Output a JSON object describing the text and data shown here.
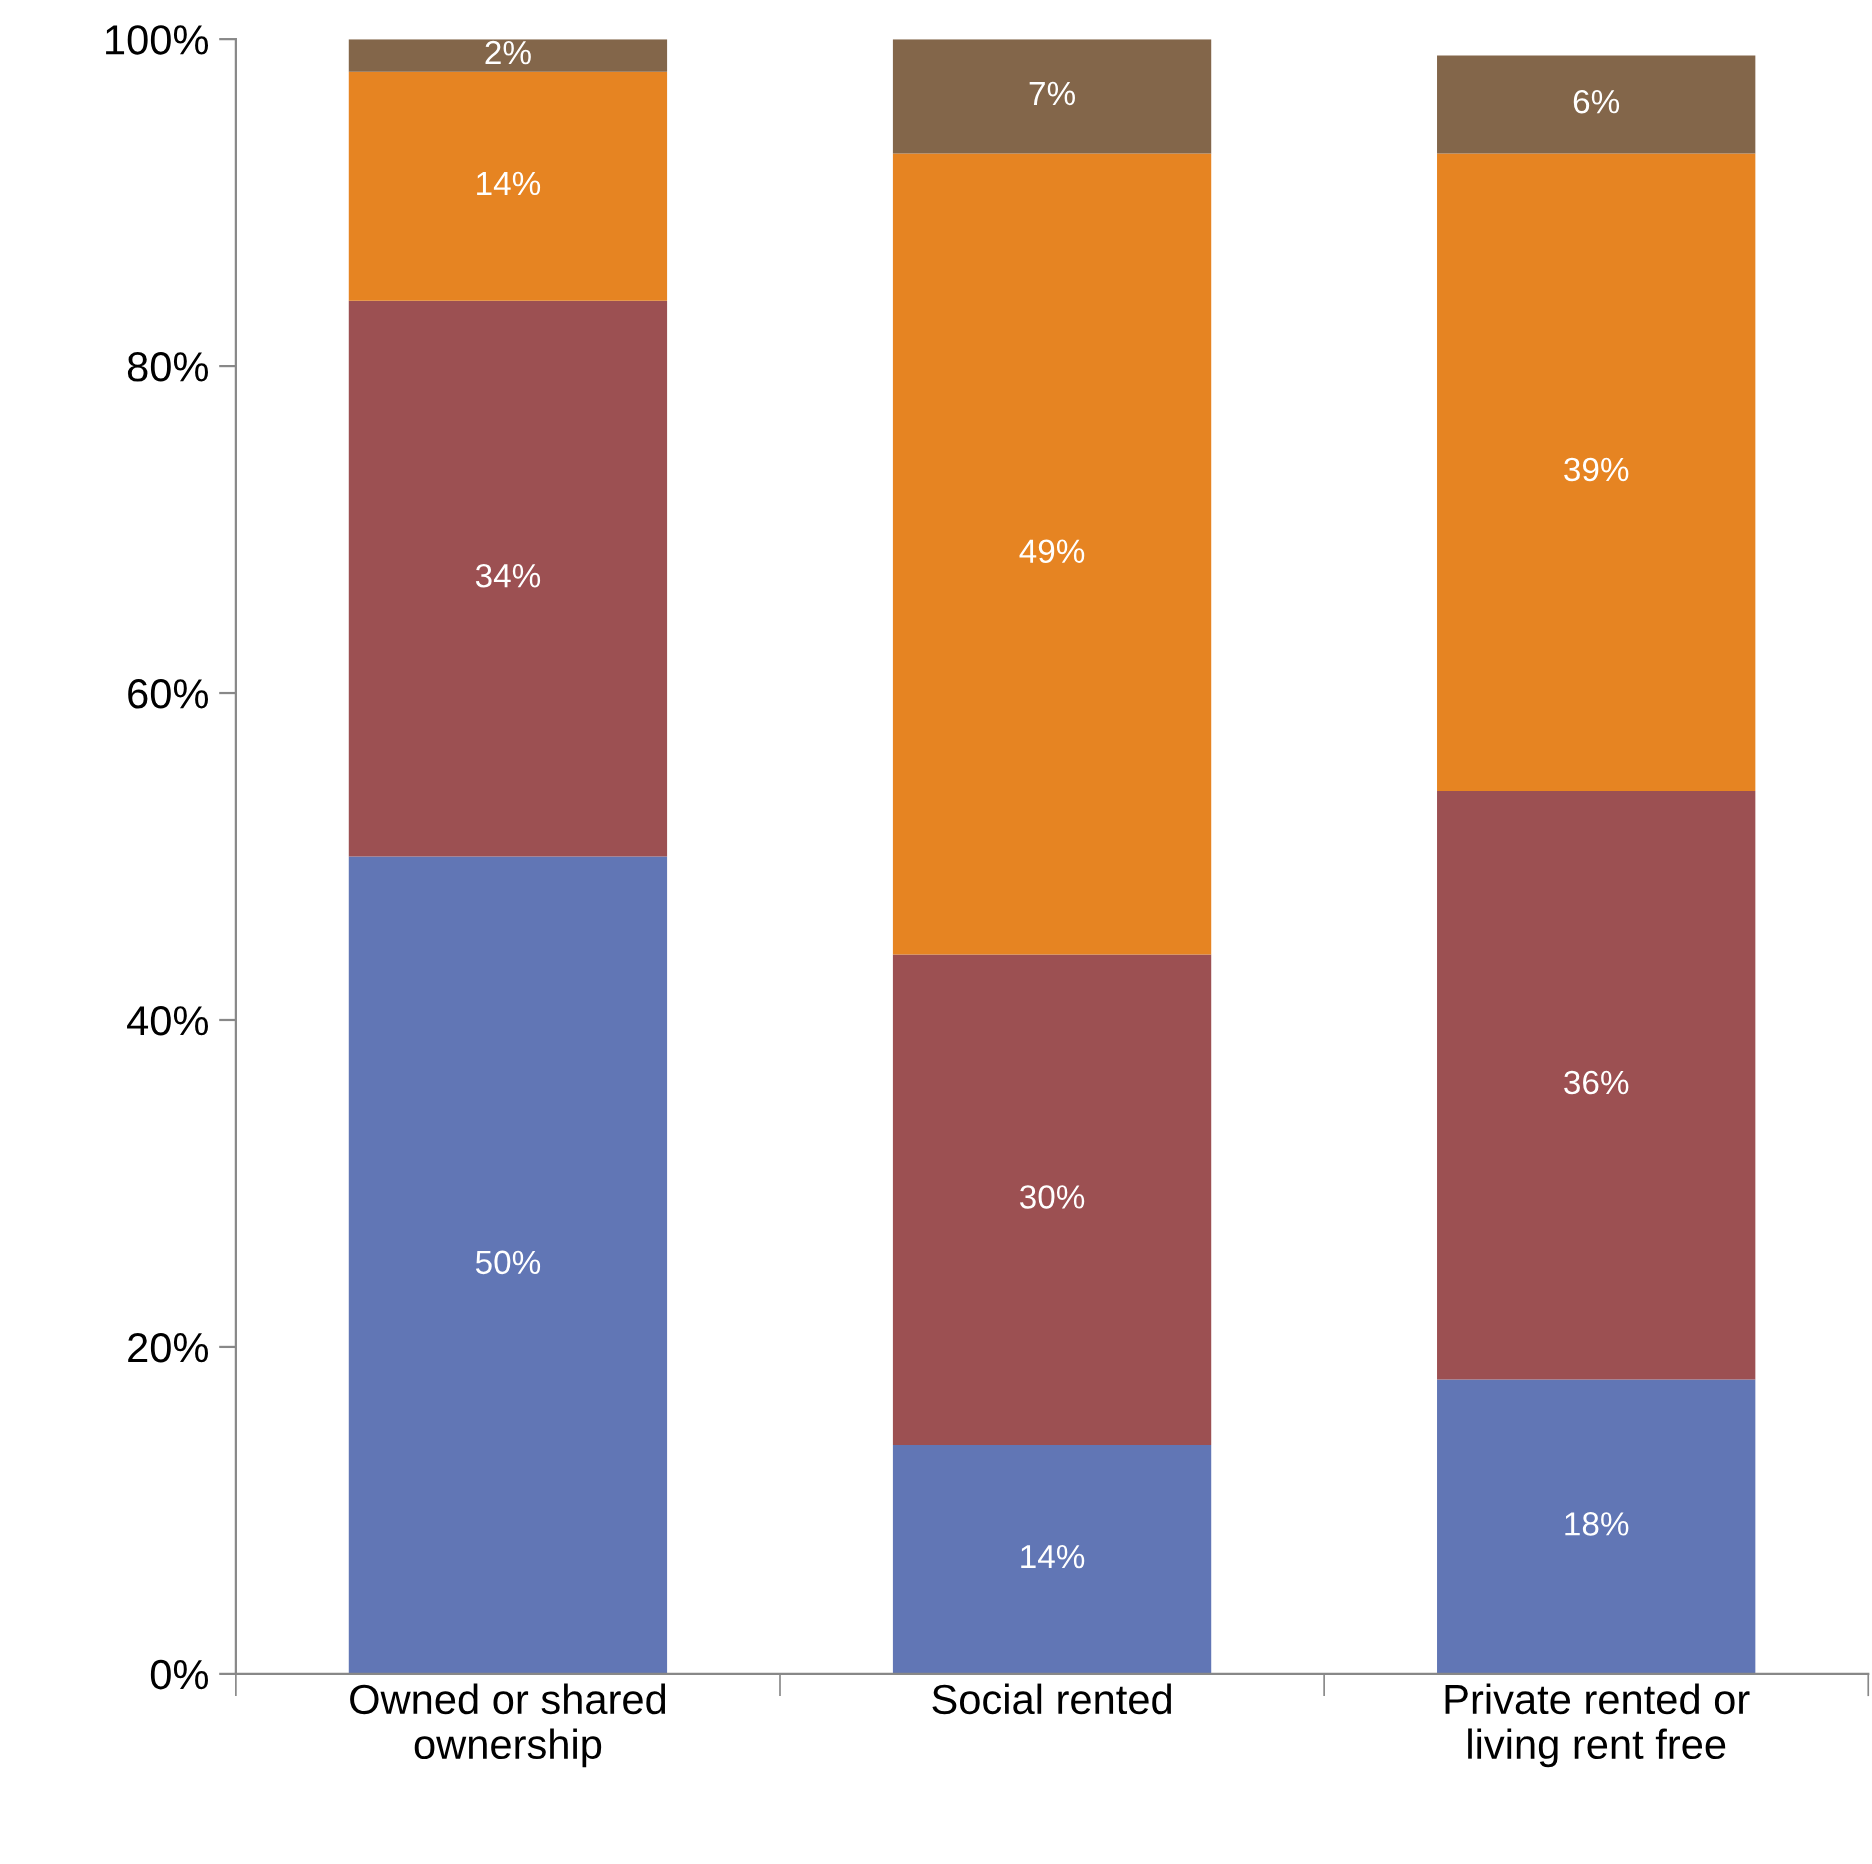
{
  "chart_data": {
    "type": "bar",
    "stacked": true,
    "categories": [
      "Owned or shared\nownership",
      "Social rented",
      "Private rented or\nliving rent free"
    ],
    "series": [
      {
        "color": "#6176b5",
        "values": [
          50,
          14,
          18
        ],
        "value_labels": [
          "50%",
          "14%",
          "18%"
        ]
      },
      {
        "color": "#9c5052",
        "values": [
          34,
          30,
          36
        ],
        "value_labels": [
          "34%",
          "30%",
          "36%"
        ]
      },
      {
        "color": "#e68422",
        "values": [
          14,
          49,
          39
        ],
        "value_labels": [
          "14%",
          "49%",
          "39%"
        ]
      },
      {
        "color": "#83664a",
        "values": [
          2,
          7,
          6
        ],
        "value_labels": [
          "2%",
          "7%",
          "6%"
        ]
      }
    ],
    "ylim": [
      0,
      100
    ],
    "yticks": [
      {
        "value": 0,
        "label": "0%"
      },
      {
        "value": 20,
        "label": "20%"
      },
      {
        "value": 40,
        "label": "40%"
      },
      {
        "value": 60,
        "label": "60%"
      },
      {
        "value": 80,
        "label": "80%"
      },
      {
        "value": 100,
        "label": "100%"
      }
    ],
    "grid": false,
    "legend": false
  }
}
